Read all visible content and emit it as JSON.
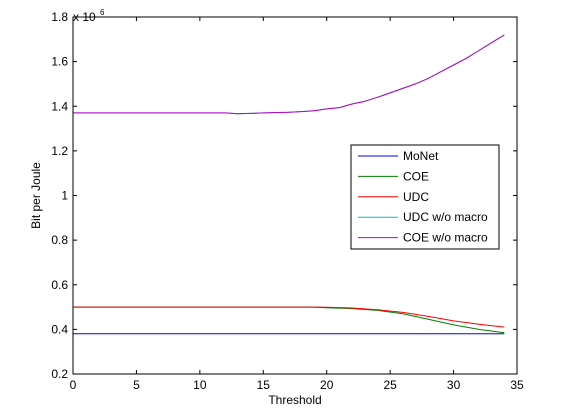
{
  "chart_data": {
    "type": "line",
    "title": "",
    "xlabel": "Threshold",
    "ylabel": "Bit per Joule",
    "y_multiplier_label": {
      "base": "x 10",
      "exponent": "6"
    },
    "xlim": [
      0,
      35
    ],
    "ylim": [
      0.2,
      1.8
    ],
    "xticks": [
      0,
      5,
      10,
      15,
      20,
      25,
      30,
      35
    ],
    "xtick_labels": [
      "0",
      "5",
      "10",
      "15",
      "20",
      "25",
      "30",
      "35"
    ],
    "yticks": [
      0.2,
      0.4,
      0.6,
      0.8,
      1.0,
      1.2,
      1.4,
      1.6,
      1.8
    ],
    "ytick_labels": [
      "0.2",
      "0.4",
      "0.6",
      "0.8",
      "1",
      "1.2",
      "1.4",
      "1.6",
      "1.8"
    ],
    "grid": false,
    "legend_position": "right-middle",
    "series": [
      {
        "name": "MoNet",
        "color": "#0000ff",
        "x": [
          0,
          34
        ],
        "y": [
          0.38,
          0.38
        ]
      },
      {
        "name": "COE",
        "color": "#008000",
        "x": [
          0,
          10,
          19,
          20,
          22,
          24,
          26,
          28,
          30,
          32,
          34
        ],
        "y": [
          0.5,
          0.5,
          0.5,
          0.497,
          0.493,
          0.485,
          0.47,
          0.445,
          0.42,
          0.4,
          0.385
        ]
      },
      {
        "name": "UDC",
        "color": "#ff0000",
        "x": [
          0,
          10,
          19,
          20,
          22,
          24,
          26,
          28,
          30,
          32,
          34
        ],
        "y": [
          0.5,
          0.5,
          0.5,
          0.499,
          0.496,
          0.488,
          0.476,
          0.458,
          0.438,
          0.423,
          0.41
        ]
      },
      {
        "name": "UDC w/o macro",
        "color": "#00bfbf",
        "x": [
          0,
          4,
          8,
          12,
          13,
          15,
          17,
          18,
          19,
          20,
          21,
          22,
          23,
          24,
          25,
          26,
          27,
          28,
          29,
          30,
          31,
          32,
          33,
          34
        ],
        "y": [
          1.37,
          1.37,
          1.37,
          1.37,
          1.366,
          1.37,
          1.373,
          1.376,
          1.38,
          1.388,
          1.394,
          1.41,
          1.422,
          1.44,
          1.46,
          1.48,
          1.5,
          1.525,
          1.555,
          1.585,
          1.615,
          1.65,
          1.685,
          1.72
        ]
      },
      {
        "name": "COE w/o macro",
        "color": "#bf00bf",
        "x": [
          0,
          4,
          8,
          12,
          13,
          15,
          17,
          18,
          19,
          20,
          21,
          22,
          23,
          24,
          25,
          26,
          27,
          28,
          29,
          30,
          31,
          32,
          33,
          34
        ],
        "y": [
          1.37,
          1.37,
          1.37,
          1.37,
          1.366,
          1.37,
          1.373,
          1.376,
          1.38,
          1.388,
          1.394,
          1.41,
          1.422,
          1.44,
          1.46,
          1.48,
          1.5,
          1.525,
          1.555,
          1.585,
          1.615,
          1.65,
          1.685,
          1.72
        ]
      }
    ]
  }
}
